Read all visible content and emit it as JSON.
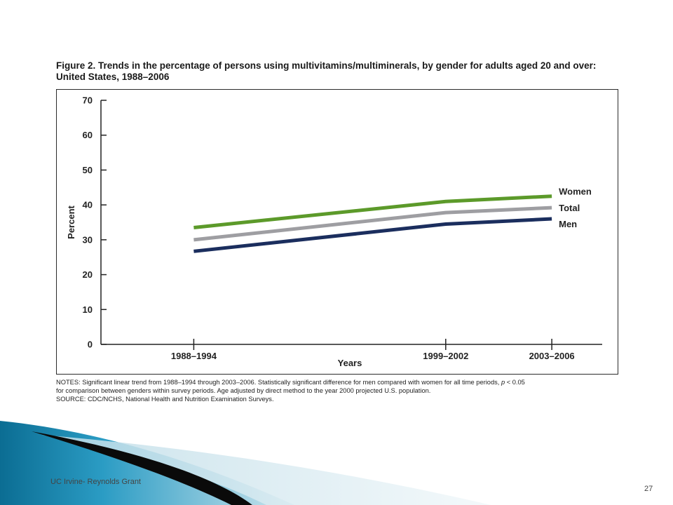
{
  "slide": {
    "footer_label": "UC Irvine- Reynolds Grant",
    "page_number": "27"
  },
  "figure": {
    "title_line1": "Figure 2. Trends in the percentage of persons using multivitamins/multiminerals, by gender for adults aged 20 and over:",
    "title_line2": "United States, 1988–2006",
    "notes_line1_a": "NOTES: Significant linear trend from 1988–1994 through 2003–2006. Statistically significant difference for men compared with women for all time periods, ",
    "notes_line1_p": "p",
    "notes_line1_b": " < 0.05",
    "notes_line2": "for comparison between genders within survey periods. Age adjusted by direct method to the year 2000 projected U.S. population.",
    "notes_line3": "SOURCE: CDC/NCHS, National Health and Nutrition Examination Surveys."
  },
  "chart_data": {
    "type": "line",
    "categories": [
      "1988–1994",
      "1999–2002",
      "2003–2006"
    ],
    "x": [
      1991,
      2000.5,
      2004.5
    ],
    "xlim": [
      1987.5,
      2006.4
    ],
    "xlabel": "Years",
    "ylabel": "Percent",
    "ylim": [
      0,
      70
    ],
    "yticks": [
      0,
      10,
      20,
      30,
      40,
      50,
      60,
      70
    ],
    "grid": false,
    "legend": "inline labels at right end of lines",
    "series": [
      {
        "name": "Women",
        "values": [
          33.5,
          41.0,
          42.5
        ],
        "color": "#5c9a2a"
      },
      {
        "name": "Total",
        "values": [
          30.0,
          37.8,
          39.2
        ],
        "color": "#9e9ea2"
      },
      {
        "name": "Men",
        "values": [
          26.7,
          34.5,
          36.0
        ],
        "color": "#1b2e5e"
      }
    ]
  }
}
